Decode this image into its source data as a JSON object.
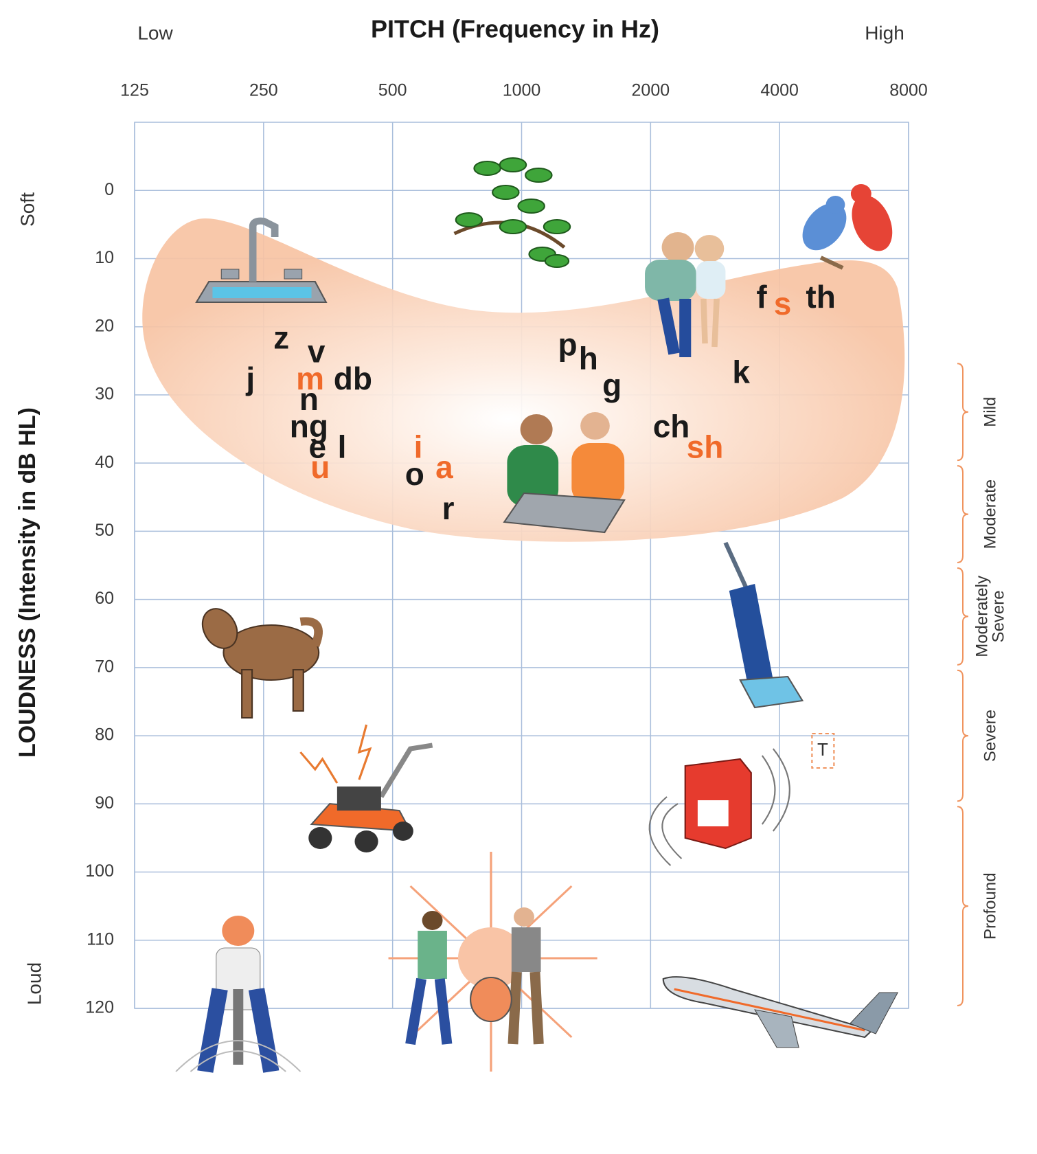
{
  "chart_data": {
    "type": "scatter",
    "title": "PITCH (Frequency in Hz)",
    "x_label_low": "Low",
    "x_label_high": "High",
    "y_label": "LOUDNESS (Intensity in dB HL)",
    "y_label_top": "Soft",
    "y_label_bottom": "Loud",
    "xscale": "log",
    "xlim": [
      125,
      8000
    ],
    "xticks": [
      125,
      250,
      500,
      1000,
      2000,
      4000,
      8000
    ],
    "ylim": [
      -10,
      120
    ],
    "y_inverted": true,
    "yticks": [
      0,
      10,
      20,
      30,
      40,
      50,
      60,
      70,
      80,
      90,
      100,
      110,
      120
    ],
    "grid": true,
    "points": [
      {
        "label": "j",
        "x": 233,
        "y": 28,
        "color": "#1a1a1a"
      },
      {
        "label": "z",
        "x": 275,
        "y": 22,
        "color": "#1a1a1a"
      },
      {
        "label": "v",
        "x": 332,
        "y": 24,
        "color": "#1a1a1a"
      },
      {
        "label": "m",
        "x": 321,
        "y": 28,
        "color": "#f06a2a"
      },
      {
        "label": "db",
        "x": 404,
        "y": 28,
        "color": "#1a1a1a"
      },
      {
        "label": "n",
        "x": 319,
        "y": 31,
        "color": "#1a1a1a"
      },
      {
        "label": "ng",
        "x": 319,
        "y": 35,
        "color": "#1a1a1a"
      },
      {
        "label": "e",
        "x": 334,
        "y": 38,
        "color": "#1a1a1a"
      },
      {
        "label": "l",
        "x": 381,
        "y": 38,
        "color": "#1a1a1a"
      },
      {
        "label": "u",
        "x": 339,
        "y": 41,
        "color": "#f06a2a"
      },
      {
        "label": "i",
        "x": 574,
        "y": 38,
        "color": "#f06a2a"
      },
      {
        "label": "o",
        "x": 563,
        "y": 42,
        "color": "#1a1a1a"
      },
      {
        "label": "a",
        "x": 660,
        "y": 41,
        "color": "#f06a2a"
      },
      {
        "label": "r",
        "x": 674,
        "y": 47,
        "color": "#1a1a1a"
      },
      {
        "label": "p",
        "x": 1281,
        "y": 23,
        "color": "#1a1a1a"
      },
      {
        "label": "h",
        "x": 1432,
        "y": 25,
        "color": "#1a1a1a"
      },
      {
        "label": "g",
        "x": 1626,
        "y": 29,
        "color": "#1a1a1a"
      },
      {
        "label": "k",
        "x": 3254,
        "y": 27,
        "color": "#1a1a1a"
      },
      {
        "label": "ch",
        "x": 2236,
        "y": 35,
        "color": "#1a1a1a"
      },
      {
        "label": "sh",
        "x": 2679,
        "y": 38,
        "color": "#f06a2a"
      },
      {
        "label": "f",
        "x": 3633,
        "y": 16,
        "color": "#1a1a1a"
      },
      {
        "label": "s",
        "x": 4066,
        "y": 17,
        "color": "#f06a2a"
      },
      {
        "label": "th",
        "x": 4990,
        "y": 16,
        "color": "#1a1a1a"
      }
    ],
    "degree_ranges": [
      {
        "lines": [
          "Mild"
        ],
        "range": [
          25,
          40
        ]
      },
      {
        "lines": [
          "Moderate"
        ],
        "range": [
          40,
          55
        ]
      },
      {
        "lines": [
          "Moderately",
          "Severe"
        ],
        "range": [
          55,
          70
        ]
      },
      {
        "lines": [
          "Severe"
        ],
        "range": [
          70,
          90
        ]
      },
      {
        "lines": [
          "Profound"
        ],
        "range": [
          90,
          120
        ]
      }
    ],
    "range_color": "#f0945f",
    "annotation": "T"
  }
}
